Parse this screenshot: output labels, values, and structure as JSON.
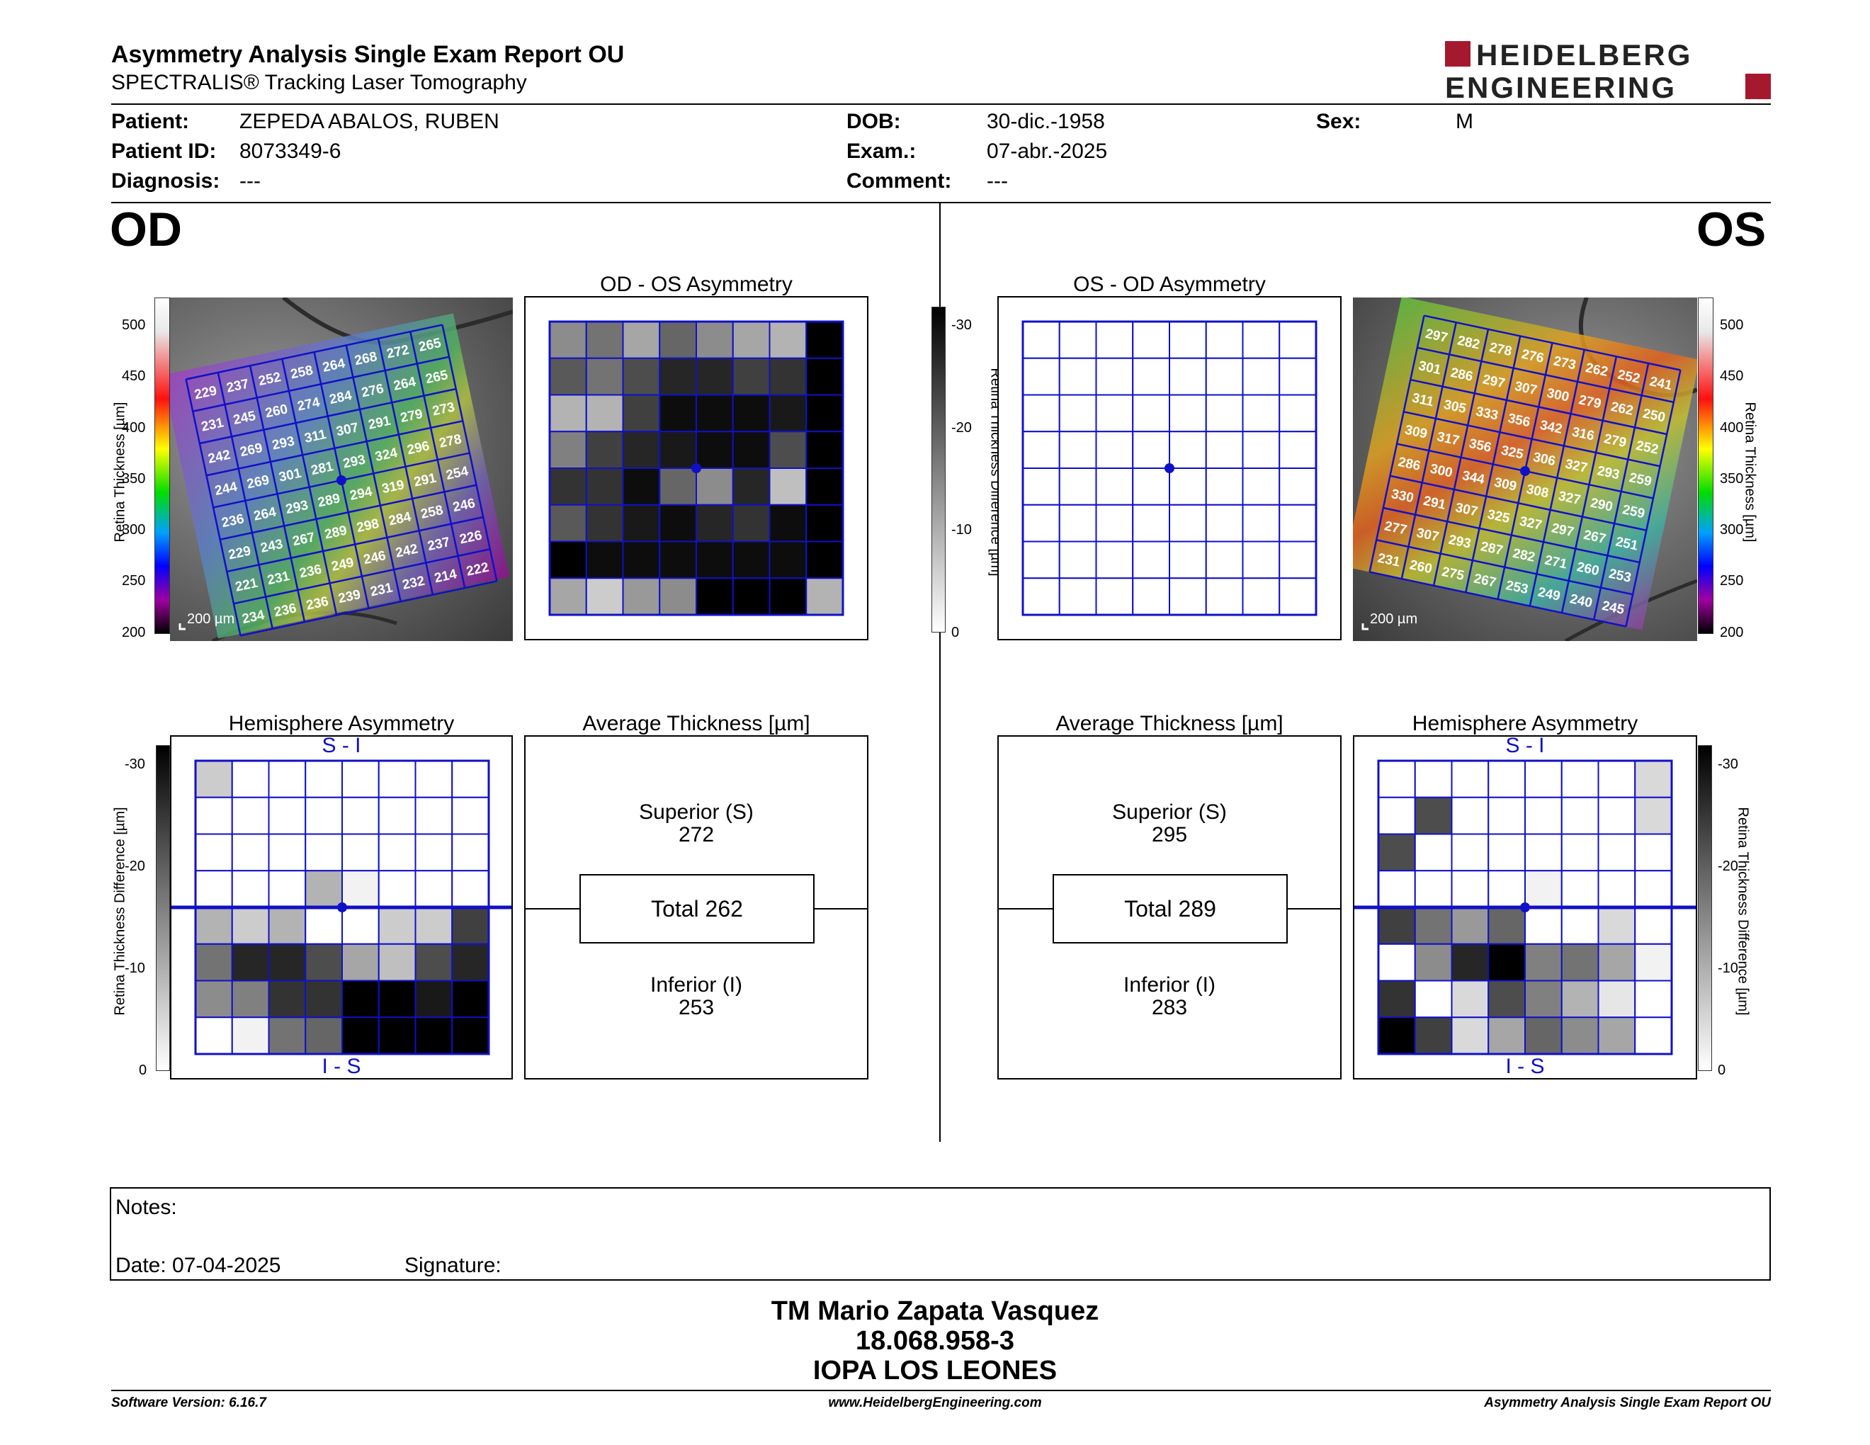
{
  "header": {
    "title": "Asymmetry Analysis Single Exam Report OU",
    "subtitle": "SPECTRALIS® Tracking Laser Tomography",
    "logo_line1": "HEIDELBERG",
    "logo_line2": "ENGINEERING"
  },
  "patient": {
    "patient_label": "Patient:",
    "patient_value": "ZEPEDA ABALOS, RUBEN",
    "id_label": "Patient ID:",
    "id_value": "8073349-6",
    "diagnosis_label": "Diagnosis:",
    "diagnosis_value": "---",
    "dob_label": "DOB:",
    "dob_value": "30-dic.-1958",
    "exam_label": "Exam.:",
    "exam_value": "07-abr.-2025",
    "comment_label": "Comment:",
    "comment_value": "---",
    "sex_label": "Sex:",
    "sex_value": "M"
  },
  "eyes": {
    "od": "OD",
    "os": "OS"
  },
  "panels": {
    "od_os_asym": "OD - OS Asymmetry",
    "os_od_asym": "OS - OD Asymmetry",
    "hemi": "Hemisphere Asymmetry",
    "avg": "Average Thickness [µm]",
    "s_i": "S - I",
    "i_s": "I - S",
    "scale": "200 µm"
  },
  "axes": {
    "thickness_label": "Retina Thickness [µm]",
    "thickness_ticks": [
      "500",
      "450",
      "400",
      "350",
      "300",
      "250",
      "200"
    ],
    "diff_label": "Retina Thickness Difference [µm]",
    "diff_ticks": [
      "-30",
      "-20",
      "-10",
      "0"
    ]
  },
  "od": {
    "thickness_grid": [
      [
        "229",
        "237",
        "252",
        "258",
        "264",
        "268",
        "272",
        "265"
      ],
      [
        "231",
        "245",
        "260",
        "274",
        "284",
        "276",
        "264",
        "265"
      ],
      [
        "242",
        "269",
        "293",
        "311",
        "307",
        "291",
        "279",
        "273"
      ],
      [
        "244",
        "269",
        "301",
        "281",
        "293",
        "324",
        "296",
        "278"
      ],
      [
        "236",
        "264",
        "293",
        "289",
        "294",
        "319",
        "291",
        "254"
      ],
      [
        "229",
        "243",
        "267",
        "289",
        "298",
        "284",
        "258",
        "246"
      ],
      [
        "221",
        "231",
        "236",
        "249",
        "246",
        "242",
        "237",
        "226"
      ],
      [
        "234",
        "236",
        "236",
        "239",
        "231",
        "232",
        "214",
        "222"
      ]
    ],
    "asymmetry_grays": [
      [
        0.45,
        0.55,
        0.35,
        0.6,
        0.45,
        0.35,
        0.3,
        1
      ],
      [
        0.65,
        0.55,
        0.7,
        0.85,
        0.85,
        0.75,
        0.8,
        1
      ],
      [
        0.3,
        0.3,
        0.75,
        0.95,
        0.95,
        0.95,
        0.9,
        1
      ],
      [
        0.5,
        0.75,
        0.85,
        0.9,
        0.95,
        0.95,
        0.7,
        1
      ],
      [
        0.8,
        0.8,
        0.95,
        0.6,
        0.45,
        0.85,
        0.25,
        1
      ],
      [
        0.65,
        0.8,
        0.9,
        0.95,
        0.85,
        0.8,
        0.95,
        1
      ],
      [
        1,
        0.95,
        0.95,
        0.95,
        0.95,
        0.95,
        0.95,
        1
      ],
      [
        0.35,
        0.2,
        0.4,
        0.45,
        1,
        1,
        1,
        0.3
      ]
    ],
    "hemi_grays": [
      [
        0.2,
        0,
        0,
        0,
        0,
        0,
        0,
        0
      ],
      [
        0,
        0,
        0,
        0,
        0,
        0,
        0,
        0
      ],
      [
        0,
        0,
        0,
        0,
        0,
        0,
        0,
        0
      ],
      [
        0,
        0,
        0,
        0.3,
        0.05,
        0,
        0,
        0
      ],
      [
        0.3,
        0.2,
        0.3,
        0,
        0,
        0.2,
        0.2,
        0.75
      ],
      [
        0.55,
        0.85,
        0.85,
        0.7,
        0.35,
        0.25,
        0.7,
        0.85
      ],
      [
        0.45,
        0.5,
        0.8,
        0.8,
        1,
        1,
        0.9,
        1
      ],
      [
        0,
        0.05,
        0.55,
        0.6,
        1,
        1,
        1,
        1
      ]
    ],
    "avg": {
      "sup_label": "Superior (S)",
      "sup_value": "272",
      "total": "Total 262",
      "inf_label": "Inferior (I)",
      "inf_value": "253"
    }
  },
  "os": {
    "thickness_grid": [
      [
        "297",
        "282",
        "278",
        "276",
        "273",
        "262",
        "252",
        "241"
      ],
      [
        "301",
        "286",
        "297",
        "307",
        "300",
        "279",
        "262",
        "250"
      ],
      [
        "311",
        "305",
        "333",
        "356",
        "342",
        "316",
        "279",
        "252"
      ],
      [
        "309",
        "317",
        "356",
        "325",
        "306",
        "327",
        "293",
        "259"
      ],
      [
        "286",
        "300",
        "344",
        "309",
        "308",
        "327",
        "290",
        "259"
      ],
      [
        "330",
        "291",
        "307",
        "325",
        "327",
        "297",
        "267",
        "251"
      ],
      [
        "277",
        "307",
        "293",
        "287",
        "282",
        "271",
        "260",
        "253"
      ],
      [
        "231",
        "260",
        "275",
        "267",
        "253",
        "249",
        "240",
        "245"
      ]
    ],
    "asymmetry_grays": [
      [
        0,
        0,
        0,
        0,
        0,
        0,
        0,
        0
      ],
      [
        0,
        0,
        0,
        0,
        0,
        0,
        0,
        0
      ],
      [
        0,
        0,
        0,
        0,
        0,
        0,
        0,
        0
      ],
      [
        0,
        0,
        0,
        0,
        0,
        0,
        0,
        0
      ],
      [
        0,
        0,
        0,
        0,
        0,
        0,
        0,
        0
      ],
      [
        0,
        0,
        0,
        0,
        0,
        0,
        0,
        0
      ],
      [
        0,
        0,
        0,
        0,
        0,
        0,
        0,
        0
      ],
      [
        0,
        0,
        0,
        0,
        0,
        0,
        0,
        0
      ]
    ],
    "hemi_grays": [
      [
        0,
        0,
        0,
        0,
        0,
        0,
        0,
        0.15
      ],
      [
        0,
        0.7,
        0,
        0,
        0,
        0,
        0,
        0.15
      ],
      [
        0.7,
        0,
        0,
        0,
        0,
        0,
        0,
        0
      ],
      [
        0,
        0,
        0,
        0,
        0.05,
        0,
        0,
        0
      ],
      [
        0.75,
        0.55,
        0.4,
        0.6,
        0,
        0,
        0.15,
        0
      ],
      [
        0,
        0.45,
        0.85,
        1,
        0.5,
        0.55,
        0.35,
        0.05
      ],
      [
        0.8,
        0,
        0.15,
        0.7,
        0.5,
        0.3,
        0.1,
        0
      ],
      [
        1,
        0.75,
        0.15,
        0.35,
        0.6,
        0.45,
        0.35,
        0
      ]
    ],
    "avg": {
      "sup_label": "Superior (S)",
      "sup_value": "295",
      "total": "Total 289",
      "inf_label": "Inferior (I)",
      "inf_value": "283"
    }
  },
  "notes": {
    "notes_label": "Notes:",
    "date_label": "Date: 07-04-2025",
    "signature_label": "Signature:"
  },
  "signature_block": {
    "name": "TM Mario Zapata Vasquez",
    "id": "18.068.958-3",
    "institution": "IOPA LOS LEONES"
  },
  "footer": {
    "version": "Software Version: 6.16.7",
    "url": "www.HeidelbergEngineering.com",
    "report": "Asymmetry Analysis Single Exam Report OU"
  },
  "colors": {
    "grid_blue": "#1010c8",
    "logo_red": "#a5192e"
  }
}
